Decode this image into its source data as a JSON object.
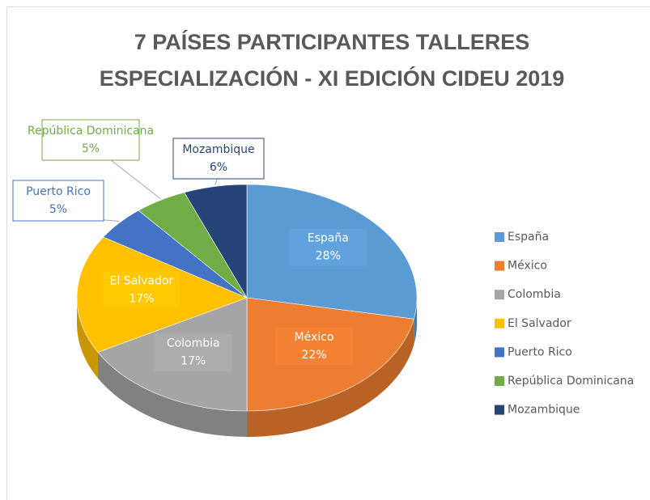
{
  "chart_data": {
    "type": "pie3d",
    "title": "7 PAÍSES PARTICIPANTES TALLERES ESPECIALIZACIÓN - XI EDICIÓN CIDEU 2019",
    "categories": [
      "España",
      "México",
      "Colombia",
      "El Salvador",
      "Puerto Rico",
      "República Dominicana",
      "Mozambique"
    ],
    "values": [
      28,
      22,
      17,
      17,
      5,
      5,
      6
    ],
    "value_labels": [
      "28%",
      "22%",
      "17%",
      "17%",
      "5%",
      "5%",
      "6%"
    ],
    "colors": [
      "#5b9bd5",
      "#ed7d31",
      "#a5a5a5",
      "#ffc000",
      "#4472c4",
      "#70ad47",
      "#264478"
    ],
    "legend": "right"
  }
}
